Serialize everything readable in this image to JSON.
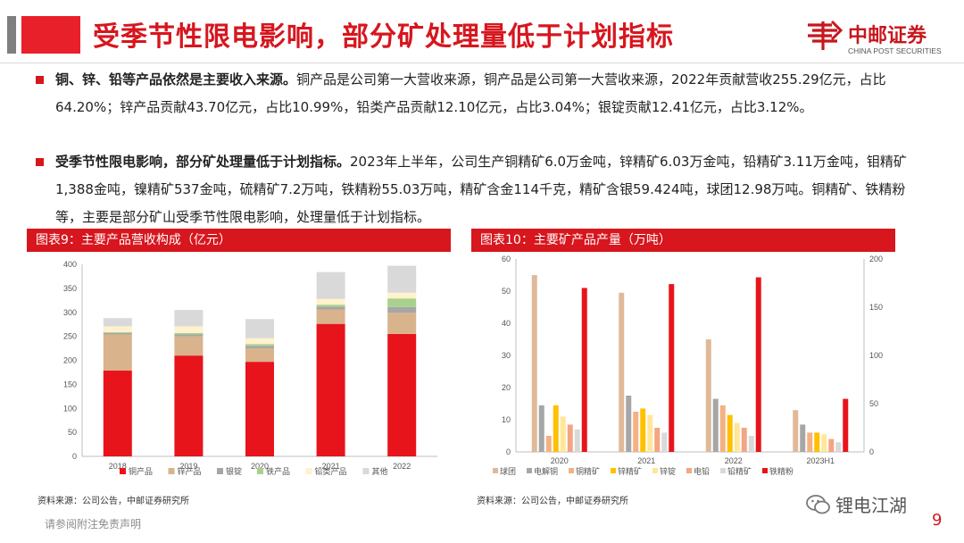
{
  "header": {
    "title": "受季节性限电影响，部分矿处理量低于计划指标",
    "logo_cn": "中邮证券",
    "logo_en": "CHINA POST SECURITIES"
  },
  "paragraphs": [
    {
      "lead": "铜、锌、铅等产品依然是主要收入来源。",
      "body": "铜产品是公司第一大营收来源，铜产品是公司第一大营收来源，2022年贡献营收255.29亿元，占比64.20%；锌产品贡献43.70亿元，占比10.99%，铅类产品贡献12.10亿元，占比3.04%；银锭贡献12.41亿元，占比3.12%。"
    },
    {
      "lead": "受季节性限电影响，部分矿处理量低于计划指标。",
      "body": "2023年上半年，公司生产铜精矿6.0万金吨，锌精矿6.03万金吨，铅精矿3.11万金吨，钼精矿1,388金吨，镍精矿537金吨，硫精矿7.2万吨，铁精粉55.03万吨，精矿含金114千克，精矿含银59.424吨，球团12.98万吨。铜精矿、铁精粉等，主要是部分矿山受季节性限电影响，处理量低于计划指标。"
    }
  ],
  "chart_data": [
    {
      "type": "bar",
      "stacked": true,
      "title": "图表9：主要产品营收构成（亿元）",
      "categories": [
        "2018",
        "2019",
        "2020",
        "2021",
        "2022"
      ],
      "ylim": [
        0,
        400
      ],
      "yticks": [
        0,
        50,
        100,
        150,
        200,
        250,
        300,
        350,
        400
      ],
      "legend_position": "bottom",
      "series": [
        {
          "name": "铜产品",
          "color": "#e8141c",
          "values": [
            179,
            210,
            197,
            276,
            255
          ]
        },
        {
          "name": "锌产品",
          "color": "#d9b38c",
          "values": [
            75,
            40,
            28,
            30,
            44
          ]
        },
        {
          "name": "银锭",
          "color": "#a6a6a6",
          "values": [
            3,
            4,
            5,
            6,
            12
          ]
        },
        {
          "name": "铁产品",
          "color": "#a9d18e",
          "values": [
            2,
            3,
            4,
            4,
            18
          ]
        },
        {
          "name": "铅类产品",
          "color": "#fff2cc",
          "values": [
            12,
            14,
            12,
            12,
            12
          ]
        },
        {
          "name": "其他",
          "color": "#d9d9d9",
          "values": [
            17,
            34,
            40,
            56,
            56
          ]
        }
      ],
      "source": "资料来源：公司公告，中邮证券研究所"
    },
    {
      "type": "bar",
      "title": "图表10：主要矿产品产量（万吨）",
      "categories": [
        "2020",
        "2021",
        "2022",
        "2023H1"
      ],
      "ylim": [
        0,
        60
      ],
      "yticks": [
        0,
        10,
        20,
        30,
        40,
        50,
        60
      ],
      "y2lim": [
        0,
        200
      ],
      "y2ticks": [
        0,
        50,
        100,
        150,
        200
      ],
      "legend_position": "bottom",
      "series": [
        {
          "name": "球团",
          "color": "#e0b999",
          "axis": "left",
          "values": [
            55,
            49.5,
            35,
            13
          ]
        },
        {
          "name": "电解铜",
          "color": "#a6a6a6",
          "axis": "left",
          "values": [
            14.5,
            17.5,
            16.5,
            8.5
          ]
        },
        {
          "name": "铜精矿",
          "color": "#f4b183",
          "axis": "left",
          "values": [
            5,
            12.5,
            14.5,
            6
          ]
        },
        {
          "name": "锌精矿",
          "color": "#ffc000",
          "axis": "left",
          "values": [
            14.5,
            13.5,
            11.5,
            6
          ]
        },
        {
          "name": "锌锭",
          "color": "#ffe699",
          "axis": "left",
          "values": [
            11,
            11.5,
            9,
            5.5
          ]
        },
        {
          "name": "电铅",
          "color": "#f4a582",
          "axis": "left",
          "values": [
            8.5,
            7.5,
            7.5,
            4
          ]
        },
        {
          "name": "铅精矿",
          "color": "#d9d9d9",
          "axis": "left",
          "values": [
            7,
            6,
            5,
            3
          ]
        },
        {
          "name": "铁精粉",
          "color": "#e8141c",
          "axis": "right",
          "values": [
            170,
            174,
            181,
            55
          ]
        }
      ],
      "source": "资料来源：公司公告，中邮证券研究所"
    }
  ],
  "footer": {
    "disclaimer": "请参阅附注免责声明",
    "watermark": "锂电江湖",
    "page": "9"
  }
}
